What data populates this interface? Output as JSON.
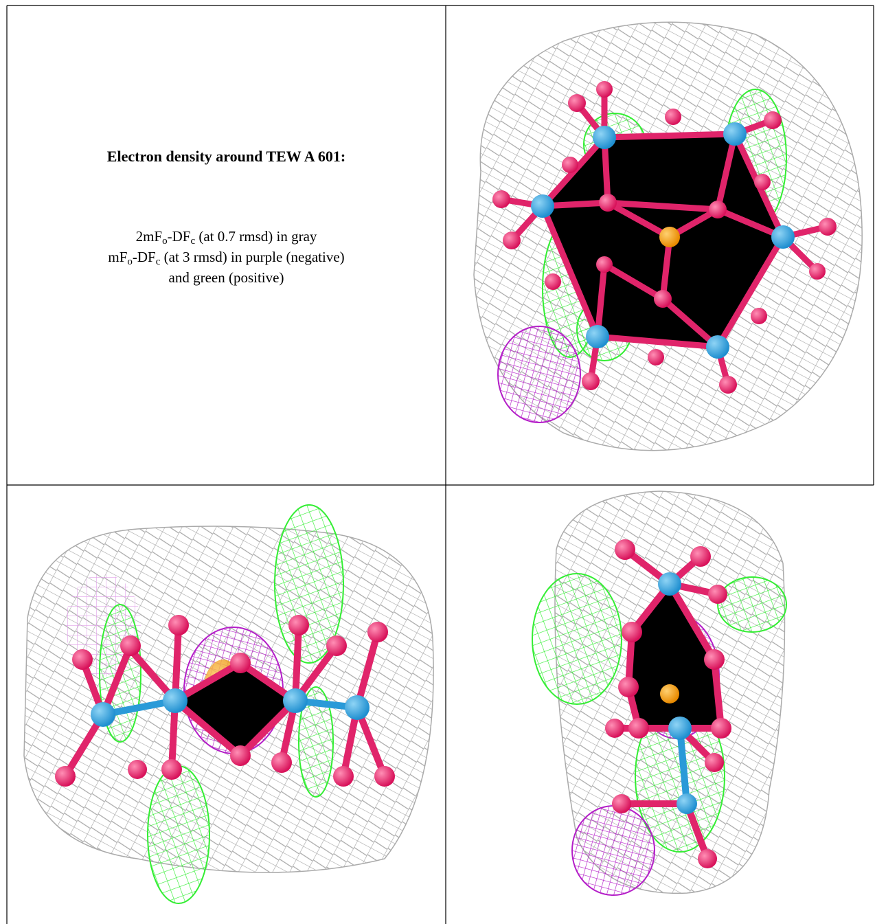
{
  "caption": {
    "title": "Electron density around TEW A 601:",
    "lines": [
      [
        "2mF",
        "o",
        "-DF",
        "c",
        " (at 0.7 rmsd) in gray"
      ],
      [
        "mF",
        "o",
        "-DF",
        "c",
        " (at 3 rmsd) in purple (negative)"
      ],
      [
        "and green (positive)"
      ]
    ]
  }
}
